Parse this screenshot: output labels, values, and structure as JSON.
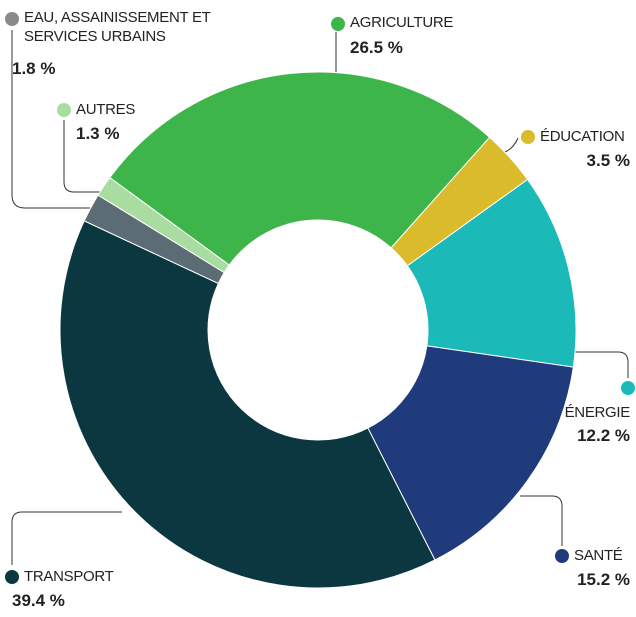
{
  "chart_data": {
    "type": "donut",
    "categories": [
      "AGRICULTURE",
      "ÉDUCATION",
      "ÉNERGIE",
      "SANTÉ",
      "TRANSPORT",
      "EAU, ASSAINISSEMENT ET SERVICES URBAINS",
      "AUTRES"
    ],
    "values": [
      26.5,
      3.5,
      12.2,
      15.2,
      39.4,
      1.8,
      1.3
    ],
    "value_labels": [
      "26.5 %",
      "3.5 %",
      "12.2 %",
      "15.2 %",
      "39.4 %",
      "1.8 %",
      "1.3 %"
    ],
    "colors": [
      "#3db54a",
      "#dabb2c",
      "#1cb9b9",
      "#1f3b7b",
      "#0b3741",
      "#5c6c74",
      "#a9dca1"
    ]
  }
}
